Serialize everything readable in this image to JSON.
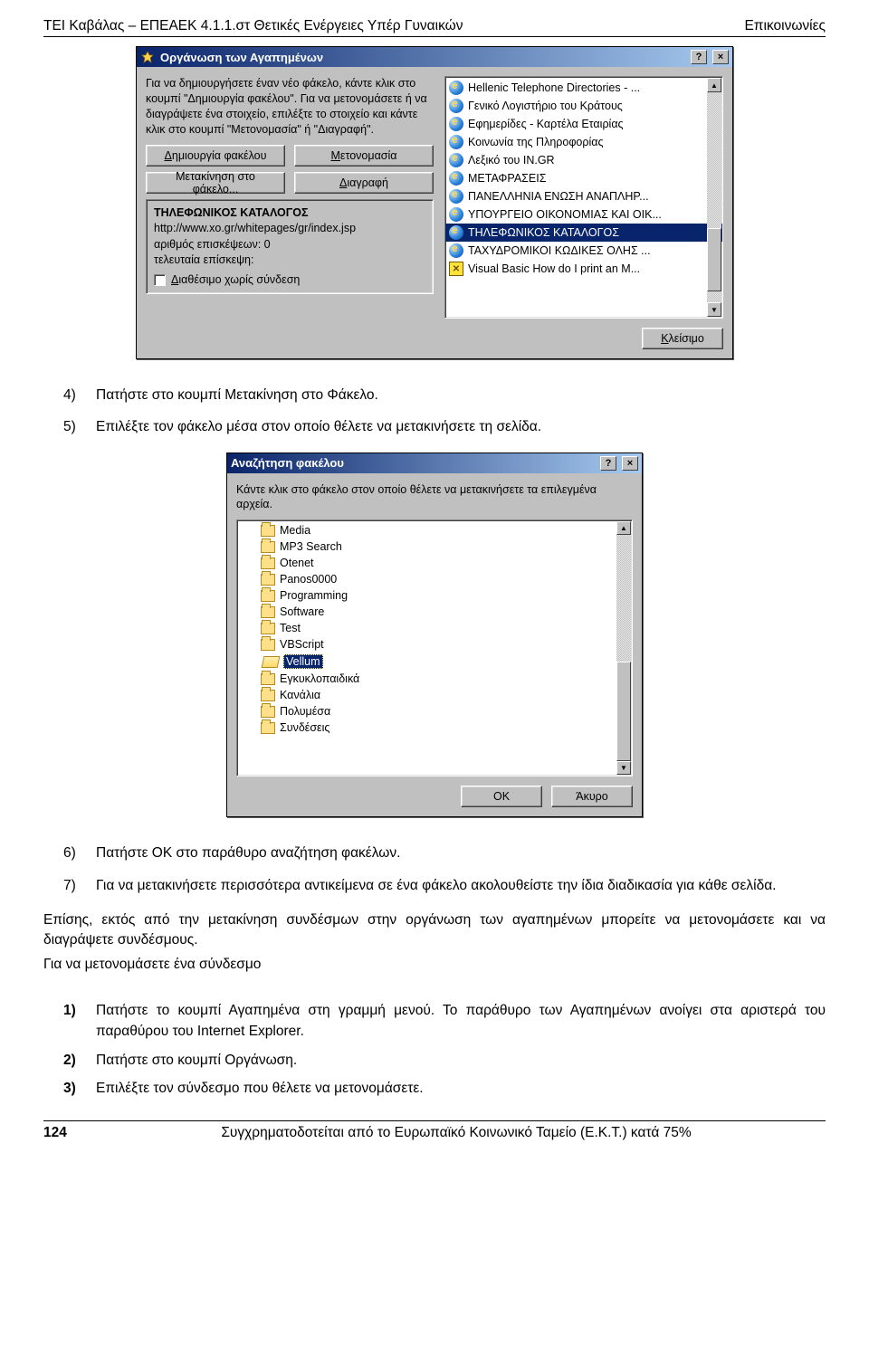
{
  "header": {
    "left": "ΤΕΙ Καβάλας – ΕΠΕΑΕΚ 4.1.1.στ Θετικές Ενέργειες Υπέρ Γυναικών",
    "right": "Επικοινωνίες"
  },
  "dlg1": {
    "title": "Οργάνωση των Αγαπημένων",
    "instr": "Για να δημιουργήσετε έναν νέο φάκελο, κάντε κλικ στο κουμπί \"Δημιουργία φακέλου\". Για να μετονομάσετε ή να διαγράψετε ένα στοιχείο, επιλέξτε το στοιχείο και κάντε κλικ στο κουμπί \"Μετονομασία\" ή \"Διαγραφή\".",
    "btn_create_prefix": "Δ",
    "btn_create_rest": "ημιουργία φακέλου",
    "btn_rename_prefix": "Μ",
    "btn_rename_rest": "ετονομασία",
    "btn_move": "Μετακίνηση στο φάκελο...",
    "btn_delete_prefix": "Δ",
    "btn_delete_rest": "ιαγραφή",
    "info_title": "ΤΗΛΕΦΩΝΙΚΟΣ ΚΑΤΑΛΟΓΟΣ",
    "info_url": "http://www.xo.gr/whitepages/gr/index.jsp",
    "info_visits": "αριθμός επισκέψεων: 0",
    "info_last": "τελευταία επίσκεψη:",
    "info_offline_prefix": "Δ",
    "info_offline_rest": "ιαθέσιμο χωρίς σύνδεση",
    "close_prefix": "Κ",
    "close_rest": "λείσιμο",
    "items": [
      {
        "icon": "ie",
        "label": "Hellenic Telephone Directories - ..."
      },
      {
        "icon": "ie",
        "label": "Γενικό Λογιστήριο του Κράτους"
      },
      {
        "icon": "ie",
        "label": "Εφημερίδες - Καρτέλα Εταιρίας"
      },
      {
        "icon": "ie",
        "label": "Κοινωνία της Πληροφορίας"
      },
      {
        "icon": "ie",
        "label": "Λεξικό του IN.GR"
      },
      {
        "icon": "ie",
        "label": "ΜΕΤΑΦΡΑΣΕΙΣ"
      },
      {
        "icon": "ie",
        "label": "ΠΑΝΕΛΛΗΝΙΑ ΕΝΩΣΗ ΑΝΑΠΛΗΡ..."
      },
      {
        "icon": "ie",
        "label": "ΥΠΟΥΡΓΕΙΟ ΟΙΚΟΝΟΜΙΑΣ ΚΑΙ ΟΙΚ..."
      },
      {
        "icon": "ie",
        "label": "ΤΗΛΕΦΩΝΙΚΟΣ ΚΑΤΑΛΟΓΟΣ",
        "selected": true
      },
      {
        "icon": "ie",
        "label": "ΤΑΧΥΔΡΟΜΙΚΟΙ ΚΩΔΙΚΕΣ ΟΛΗΣ ..."
      },
      {
        "icon": "vb",
        "label": "Visual Basic How do I print an M..."
      }
    ]
  },
  "mid_steps": {
    "s4n": "4)",
    "s4": "Πατήστε στο κουμπί Μετακίνηση στο Φάκελο.",
    "s5n": "5)",
    "s5": "Επιλέξτε τον φάκελο μέσα στον οποίο θέλετε να μετακινήσετε τη σελίδα."
  },
  "dlg2": {
    "title": "Αναζήτηση φακέλου",
    "instr": "Κάντε κλικ στο φάκελο στον οποίο θέλετε να μετακινήσετε τα επιλεγμένα αρχεία.",
    "ok": "OK",
    "cancel": "Άκυρο",
    "items": [
      {
        "label": "Media",
        "indent": 1
      },
      {
        "label": "MP3 Search",
        "indent": 1
      },
      {
        "label": "Otenet",
        "indent": 1
      },
      {
        "label": "Panos0000",
        "indent": 1
      },
      {
        "label": "Programming",
        "indent": 1
      },
      {
        "label": "Software",
        "indent": 1
      },
      {
        "label": "Test",
        "indent": 1
      },
      {
        "label": "VBScript",
        "indent": 1
      },
      {
        "label": "Vellum",
        "indent": 1,
        "selected": true,
        "open": true
      },
      {
        "label": "Εγκυκλοπαιδικά",
        "indent": 1
      },
      {
        "label": "Κανάλια",
        "indent": 1
      },
      {
        "label": "Πολυμέσα",
        "indent": 1
      },
      {
        "label": "Συνδέσεις",
        "indent": 1
      }
    ]
  },
  "after_steps": {
    "s6n": "6)",
    "s6": "Πατήστε OK στο παράθυρο αναζήτηση φακέλων.",
    "s7n": "7)",
    "s7": "Για να μετακινήσετε περισσότερα αντικείμενα σε ένα φάκελο ακολουθείστε την ίδια διαδικασία για κάθε σελίδα."
  },
  "para1": "Επίσης, εκτός από την μετακίνηση συνδέσμων στην οργάνωση των αγαπημένων μπορείτε να μετονομάσετε και να διαγράψετε συνδέσμους.",
  "para2": "Για να μετονομάσετε ένα σύνδεσμο",
  "steps2": {
    "s1n": "1)",
    "s1": "Πατήστε το κουμπί Αγαπημένα στη γραμμή μενού. Το παράθυρο των Αγαπημένων ανοίγει στα αριστερά του παραθύρου του Internet Explorer.",
    "s2n": "2)",
    "s2": " Πατήστε στο κουμπί Οργάνωση.",
    "s3n": "3)",
    "s3": " Επιλέξτε τον σύνδεσμο που θέλετε να μετονομάσετε."
  },
  "footer": {
    "page": "124",
    "text": "Συγχρηματοδοτείται από το Ευρωπαϊκό Κοινωνικό Ταμείο (Ε.Κ.Τ.) κατά 75%"
  }
}
